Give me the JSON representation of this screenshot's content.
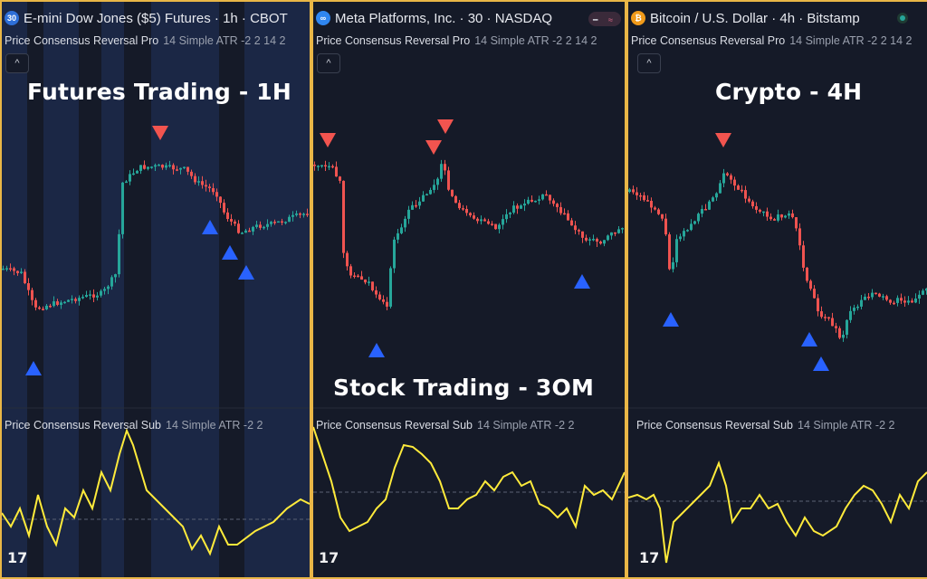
{
  "panels": [
    {
      "symbol_icon_text": "30",
      "icon_color": "#2e6fd8",
      "title": "E-mini Dow Jones ($5) Futures · 1h · CBOT",
      "indicator": {
        "name": "Price Consensus Reversal Pro",
        "params": "14 Simple ATR -2 2 14 2"
      },
      "sub_indicator": {
        "name": "Price Consensus Reversal Sub",
        "params": "14 Simple ATR -2 2"
      },
      "overlay_label": "Futures Trading - 1H",
      "collapse_glyph": "^",
      "logo": "17",
      "signals": {
        "down": 1,
        "up": 4
      }
    },
    {
      "symbol_icon_text": "∞",
      "icon_color": "#2f86f0",
      "title": "Meta Platforms, Inc. · 30 · NASDAQ",
      "indicator": {
        "name": "Price Consensus Reversal Pro",
        "params": "14 Simple ATR -2 2 14 2"
      },
      "sub_indicator": {
        "name": "Price Consensus Reversal Sub",
        "params": "14 Simple ATR -2 2"
      },
      "overlay_label": "Stock Trading - 3OM",
      "collapse_glyph": "^",
      "logo": "17",
      "signals": {
        "down": 3,
        "up": 2
      }
    },
    {
      "symbol_icon_text": "₿",
      "icon_color": "#f09a1a",
      "title": "Bitcoin / U.S. Dollar · 4h · Bitstamp",
      "indicator": {
        "name": "Price Consensus Reversal Pro",
        "params": "14 Simple ATR -2 2 14 2"
      },
      "sub_indicator": {
        "name": "Price Consensus Reversal Sub",
        "params": "14 Simple ATR -2 2"
      },
      "overlay_label": "Crypto - 4H",
      "collapse_glyph": "^",
      "logo": "17",
      "signals": {
        "down": 1,
        "up": 3
      }
    }
  ],
  "colors": {
    "frame": "#e9b646",
    "background": "#151a28",
    "up_candle": "#26a69a",
    "down_candle": "#ef5350",
    "buy_signal": "#2962ff",
    "sell_signal": "#f2544f",
    "oscillator": "#ffeb3b",
    "session_band": "#1c2a4a"
  }
}
